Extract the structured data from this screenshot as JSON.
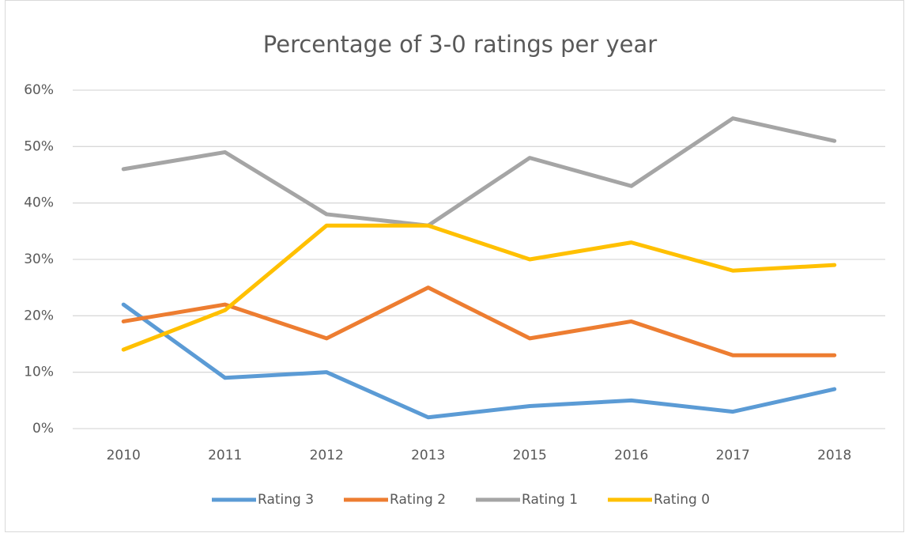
{
  "chart_data": {
    "type": "line",
    "title": "Percentage of 3-0 ratings per year",
    "categories": [
      "2010",
      "2011",
      "2012",
      "2013",
      "2015",
      "2016",
      "2017",
      "2018"
    ],
    "series": [
      {
        "name": "Rating 3",
        "color": "#5b9bd5",
        "values": [
          22,
          9,
          10,
          2,
          4,
          5,
          3,
          7
        ]
      },
      {
        "name": "Rating 2",
        "color": "#ed7d31",
        "values": [
          19,
          22,
          16,
          25,
          16,
          19,
          13,
          13
        ]
      },
      {
        "name": "Rating 1",
        "color": "#a5a5a5",
        "values": [
          46,
          49,
          38,
          36,
          48,
          43,
          55,
          51
        ]
      },
      {
        "name": "Rating 0",
        "color": "#ffc000",
        "values": [
          14,
          21,
          36,
          36,
          30,
          33,
          28,
          29
        ]
      }
    ],
    "ylim": [
      0,
      60
    ],
    "yticks": [
      {
        "value": 0,
        "label": "0%"
      },
      {
        "value": 10,
        "label": "10%"
      },
      {
        "value": 20,
        "label": "20%"
      },
      {
        "value": 30,
        "label": "30%"
      },
      {
        "value": 40,
        "label": "40%"
      },
      {
        "value": 50,
        "label": "50%"
      },
      {
        "value": 60,
        "label": "60%"
      }
    ],
    "grid": true,
    "legend": "bottom"
  }
}
